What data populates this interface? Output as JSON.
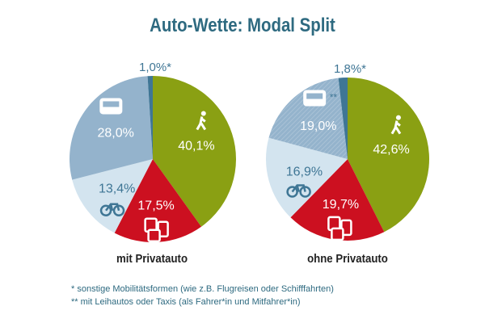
{
  "title": "Auto-Wette: Modal Split",
  "colors": {
    "walk": "#8aa013",
    "pt": "#cc1020",
    "bike": "#d3e4ef",
    "car": "#94b3cc",
    "other": "#3f7695"
  },
  "chart_data": [
    {
      "type": "pie",
      "caption": "mit Privatauto",
      "slices": [
        {
          "name": "Fuß",
          "value": 40.1,
          "label": "40,1%",
          "color": "walk",
          "icon": "walk-icon"
        },
        {
          "name": "ÖPNV",
          "value": 17.5,
          "label": "17,5%",
          "color": "pt",
          "icon": "public-transport-icon"
        },
        {
          "name": "Rad",
          "value": 13.4,
          "label": "13,4%",
          "color": "bike",
          "icon": "bike-icon"
        },
        {
          "name": "Auto",
          "value": 28.0,
          "label": "28,0%",
          "color": "car",
          "icon": "car-icon"
        },
        {
          "name": "Sonstige",
          "value": 1.0,
          "label": "1,0%*",
          "color": "other"
        }
      ]
    },
    {
      "type": "pie",
      "caption": "ohne Privatauto",
      "slices": [
        {
          "name": "Fuß",
          "value": 42.6,
          "label": "42,6%",
          "color": "walk",
          "icon": "walk-icon"
        },
        {
          "name": "ÖPNV",
          "value": 19.7,
          "label": "19,7%",
          "color": "pt",
          "icon": "public-transport-icon"
        },
        {
          "name": "Rad",
          "value": 16.9,
          "label": "16,9%",
          "color": "bike",
          "icon": "bike-icon"
        },
        {
          "name": "Auto",
          "value": 19.0,
          "label": "19,0%",
          "color": "car",
          "icon": "car-icon",
          "hatched": true,
          "note": "**"
        },
        {
          "name": "Sonstige",
          "value": 1.8,
          "label": "1,8%*",
          "color": "other"
        }
      ]
    }
  ],
  "footnotes": [
    "*   sonstige Mobilitätsformen (wie z.B. Flugreisen oder Schifffahrten)",
    "** mit Leihautos oder Taxis (als Fahrer*in und Mitfahrer*in)"
  ]
}
